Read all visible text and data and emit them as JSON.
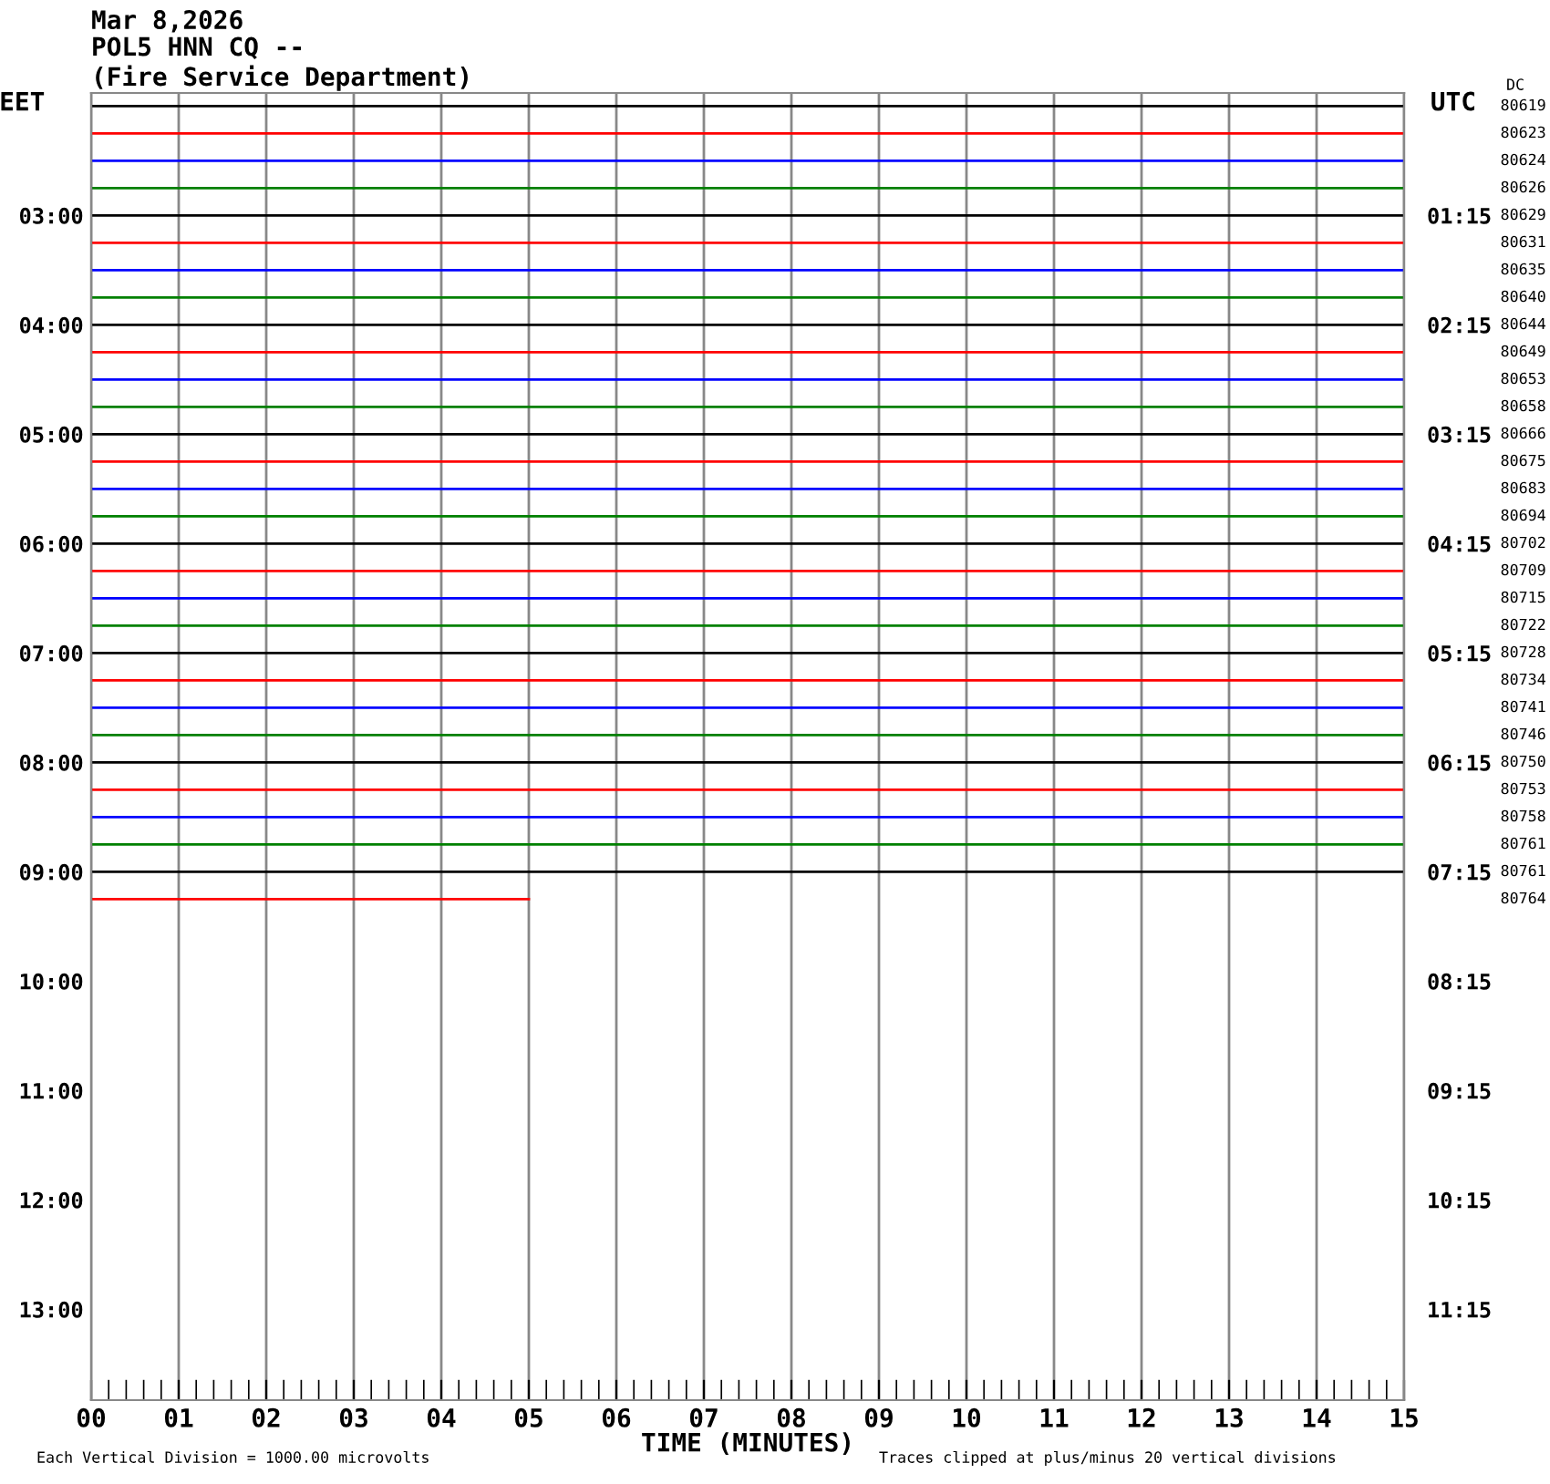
{
  "chart_data": {
    "type": "line",
    "title": "Mar 8,2026",
    "subtitle": "POL5 HNN CQ --\n(Fire Service Department)",
    "xlabel": "TIME (MINUTES)",
    "ylabel": "EET",
    "y2label": "UTC",
    "xlim": [
      0,
      15
    ],
    "ylim": [
      13.83,
      1.88
    ],
    "y2lim": [
      12.08,
      0.13
    ],
    "grid": "x",
    "legend": false,
    "marker": "none",
    "line_style": "solid",
    "xticks": [
      {
        "value": 0,
        "label": "00"
      },
      {
        "value": 1,
        "label": "01"
      },
      {
        "value": 2,
        "label": "02"
      },
      {
        "value": 3,
        "label": "03"
      },
      {
        "value": 4,
        "label": "04"
      },
      {
        "value": 5,
        "label": "05"
      },
      {
        "value": 6,
        "label": "06"
      },
      {
        "value": 7,
        "label": "07"
      },
      {
        "value": 8,
        "label": "08"
      },
      {
        "value": 9,
        "label": "09"
      },
      {
        "value": 10,
        "label": "10"
      },
      {
        "value": 11,
        "label": "11"
      },
      {
        "value": 12,
        "label": "12"
      },
      {
        "value": 13,
        "label": "13"
      },
      {
        "value": 14,
        "label": "14"
      },
      {
        "value": 15,
        "label": "15"
      },
      {
        "value": 0.2,
        "label": null
      },
      {
        "value": 0.4,
        "label": null
      },
      {
        "value": 0.6,
        "label": null
      },
      {
        "value": 0.8,
        "label": null
      },
      {
        "value": 1.2,
        "label": null
      },
      {
        "value": 1.4,
        "label": null
      },
      {
        "value": 1.6,
        "label": null
      },
      {
        "value": 1.8,
        "label": null
      },
      {
        "value": 2.2,
        "label": null
      },
      {
        "value": 2.4,
        "label": null
      },
      {
        "value": 2.6,
        "label": null
      },
      {
        "value": 2.8,
        "label": null
      },
      {
        "value": 3.2,
        "label": null
      },
      {
        "value": 3.4,
        "label": null
      },
      {
        "value": 3.6,
        "label": null
      },
      {
        "value": 3.8,
        "label": null
      },
      {
        "value": 4.2,
        "label": null
      },
      {
        "value": 4.4,
        "label": null
      },
      {
        "value": 4.6,
        "label": null
      },
      {
        "value": 4.8,
        "label": null
      },
      {
        "value": 5.2,
        "label": null
      },
      {
        "value": 5.4,
        "label": null
      },
      {
        "value": 5.6,
        "label": null
      },
      {
        "value": 5.8,
        "label": null
      },
      {
        "value": 6.2,
        "label": null
      },
      {
        "value": 6.4,
        "label": null
      },
      {
        "value": 6.6,
        "label": null
      },
      {
        "value": 6.8,
        "label": null
      },
      {
        "value": 7.2,
        "label": null
      },
      {
        "value": 7.4,
        "label": null
      },
      {
        "value": 7.6,
        "label": null
      },
      {
        "value": 7.8,
        "label": null
      },
      {
        "value": 8.2,
        "label": null
      },
      {
        "value": 8.4,
        "label": null
      },
      {
        "value": 8.6,
        "label": null
      },
      {
        "value": 8.8,
        "label": null
      },
      {
        "value": 9.2,
        "label": null
      },
      {
        "value": 9.4,
        "label": null
      },
      {
        "value": 9.6,
        "label": null
      },
      {
        "value": 9.8,
        "label": null
      },
      {
        "value": 10.2,
        "label": null
      },
      {
        "value": 10.4,
        "label": null
      },
      {
        "value": 10.6,
        "label": null
      },
      {
        "value": 10.8,
        "label": null
      },
      {
        "value": 11.2,
        "label": null
      },
      {
        "value": 11.4,
        "label": null
      },
      {
        "value": 11.6,
        "label": null
      },
      {
        "value": 11.8,
        "label": null
      },
      {
        "value": 12.2,
        "label": null
      },
      {
        "value": 12.4,
        "label": null
      },
      {
        "value": 12.6,
        "label": null
      },
      {
        "value": 12.8,
        "label": null
      },
      {
        "value": 13.2,
        "label": null
      },
      {
        "value": 13.4,
        "label": null
      },
      {
        "value": 13.6,
        "label": null
      },
      {
        "value": 13.8,
        "label": null
      },
      {
        "value": 14.2,
        "label": null
      },
      {
        "value": 14.4,
        "label": null
      },
      {
        "value": 14.6,
        "label": null
      },
      {
        "value": 14.8,
        "label": null
      }
    ],
    "yticks": [
      {
        "value": 3,
        "label": "03:00"
      },
      {
        "value": 4,
        "label": "04:00"
      },
      {
        "value": 5,
        "label": "05:00"
      },
      {
        "value": 6,
        "label": "06:00"
      },
      {
        "value": 7,
        "label": "07:00"
      },
      {
        "value": 8,
        "label": "08:00"
      },
      {
        "value": 9,
        "label": "09:00"
      },
      {
        "value": 10,
        "label": "10:00"
      },
      {
        "value": 11,
        "label": "11:00"
      },
      {
        "value": 12,
        "label": "12:00"
      },
      {
        "value": 13,
        "label": "13:00"
      }
    ],
    "y2ticks": [
      {
        "value": 1.25,
        "label": "01:15"
      },
      {
        "value": 2.25,
        "label": "02:15"
      },
      {
        "value": 3.25,
        "label": "03:15"
      },
      {
        "value": 4.25,
        "label": "04:15"
      },
      {
        "value": 5.25,
        "label": "05:15"
      },
      {
        "value": 6.25,
        "label": "06:15"
      },
      {
        "value": 7.25,
        "label": "07:15"
      },
      {
        "value": 8.25,
        "label": "08:15"
      },
      {
        "value": 9.25,
        "label": "09:15"
      },
      {
        "value": 10.25,
        "label": "10:15"
      },
      {
        "value": 11.25,
        "label": "11:15"
      }
    ],
    "series": [
      {
        "name": "80619",
        "color": "#000000",
        "x": [
          0,
          15
        ],
        "values": [
          2,
          2
        ]
      },
      {
        "name": "80623",
        "color": "#ff0000",
        "x": [
          0,
          15
        ],
        "values": [
          2.25,
          2.25
        ]
      },
      {
        "name": "80624",
        "color": "#0000ff",
        "x": [
          0,
          15
        ],
        "values": [
          2.5,
          2.5
        ]
      },
      {
        "name": "80626",
        "color": "#008000",
        "x": [
          0,
          15
        ],
        "values": [
          2.75,
          2.75
        ]
      },
      {
        "name": "80629",
        "color": "#000000",
        "x": [
          0,
          15
        ],
        "values": [
          3,
          3
        ]
      },
      {
        "name": "80631",
        "color": "#ff0000",
        "x": [
          0,
          15
        ],
        "values": [
          3.25,
          3.25
        ]
      },
      {
        "name": "80635",
        "color": "#0000ff",
        "x": [
          0,
          15
        ],
        "values": [
          3.5,
          3.5
        ]
      },
      {
        "name": "80640",
        "color": "#008000",
        "x": [
          0,
          15
        ],
        "values": [
          3.75,
          3.75
        ]
      },
      {
        "name": "80644",
        "color": "#000000",
        "x": [
          0,
          15
        ],
        "values": [
          4,
          4
        ]
      },
      {
        "name": "80649",
        "color": "#ff0000",
        "x": [
          0,
          15
        ],
        "values": [
          4.25,
          4.25
        ]
      },
      {
        "name": "80653",
        "color": "#0000ff",
        "x": [
          0,
          15
        ],
        "values": [
          4.5,
          4.5
        ]
      },
      {
        "name": "80658",
        "color": "#008000",
        "x": [
          0,
          15
        ],
        "values": [
          4.75,
          4.75
        ]
      },
      {
        "name": "80666",
        "color": "#000000",
        "x": [
          0,
          15
        ],
        "values": [
          5,
          5
        ]
      },
      {
        "name": "80675",
        "color": "#ff0000",
        "x": [
          0,
          15
        ],
        "values": [
          5.25,
          5.25
        ]
      },
      {
        "name": "80683",
        "color": "#0000ff",
        "x": [
          0,
          15
        ],
        "values": [
          5.5,
          5.5
        ]
      },
      {
        "name": "80694",
        "color": "#008000",
        "x": [
          0,
          15
        ],
        "values": [
          5.75,
          5.75
        ]
      },
      {
        "name": "80702",
        "color": "#000000",
        "x": [
          0,
          15
        ],
        "values": [
          6,
          6
        ]
      },
      {
        "name": "80709",
        "color": "#ff0000",
        "x": [
          0,
          15
        ],
        "values": [
          6.25,
          6.25
        ]
      },
      {
        "name": "80715",
        "color": "#0000ff",
        "x": [
          0,
          15
        ],
        "values": [
          6.5,
          6.5
        ]
      },
      {
        "name": "80722",
        "color": "#008000",
        "x": [
          0,
          15
        ],
        "values": [
          6.75,
          6.75
        ]
      },
      {
        "name": "80728",
        "color": "#000000",
        "x": [
          0,
          15
        ],
        "values": [
          7,
          7
        ]
      },
      {
        "name": "80734",
        "color": "#ff0000",
        "x": [
          0,
          15
        ],
        "values": [
          7.25,
          7.25
        ]
      },
      {
        "name": "80741",
        "color": "#0000ff",
        "x": [
          0,
          15
        ],
        "values": [
          7.5,
          7.5
        ]
      },
      {
        "name": "80746",
        "color": "#008000",
        "x": [
          0,
          15
        ],
        "values": [
          7.75,
          7.75
        ]
      },
      {
        "name": "80750",
        "color": "#000000",
        "x": [
          0,
          15
        ],
        "values": [
          8,
          8
        ]
      },
      {
        "name": "80753",
        "color": "#ff0000",
        "x": [
          0,
          15
        ],
        "values": [
          8.25,
          8.25
        ]
      },
      {
        "name": "80758",
        "color": "#0000ff",
        "x": [
          0,
          15
        ],
        "values": [
          8.5,
          8.5
        ]
      },
      {
        "name": "80761",
        "color": "#008000",
        "x": [
          0,
          15
        ],
        "values": [
          8.75,
          8.75
        ]
      },
      {
        "name": "80761",
        "color": "#000000",
        "x": [
          0,
          15
        ],
        "values": [
          9,
          9
        ]
      },
      {
        "name": "80764",
        "color": "#ff0000",
        "x": [
          0,
          5
        ],
        "values": [
          9.25,
          9.25
        ]
      }
    ],
    "annotations": [
      "DC",
      "Each Vertical Division = 1000.00 microvolts",
      "Traces clipped at plus/minus 20 vertical divisions"
    ]
  }
}
